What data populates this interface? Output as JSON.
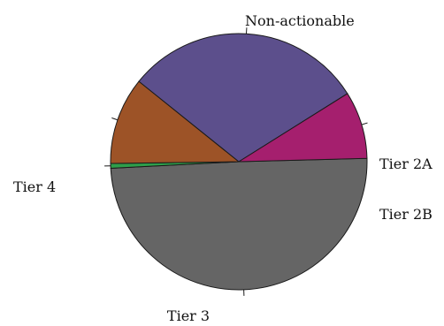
{
  "chart_data": {
    "type": "pie",
    "title": "",
    "slices": [
      {
        "label": "Non-actionable",
        "value": 49.6,
        "color": "#656565"
      },
      {
        "label": "Tier 2A",
        "value": 0.6,
        "color": "#2e9e4a"
      },
      {
        "label": "Tier 2B",
        "value": 11.0,
        "color": "#9d5327"
      },
      {
        "label": "Tier 3",
        "value": 30.3,
        "color": "#5c4f8c"
      },
      {
        "label": "Tier 4",
        "value": 8.5,
        "color": "#a51f6e"
      }
    ]
  }
}
